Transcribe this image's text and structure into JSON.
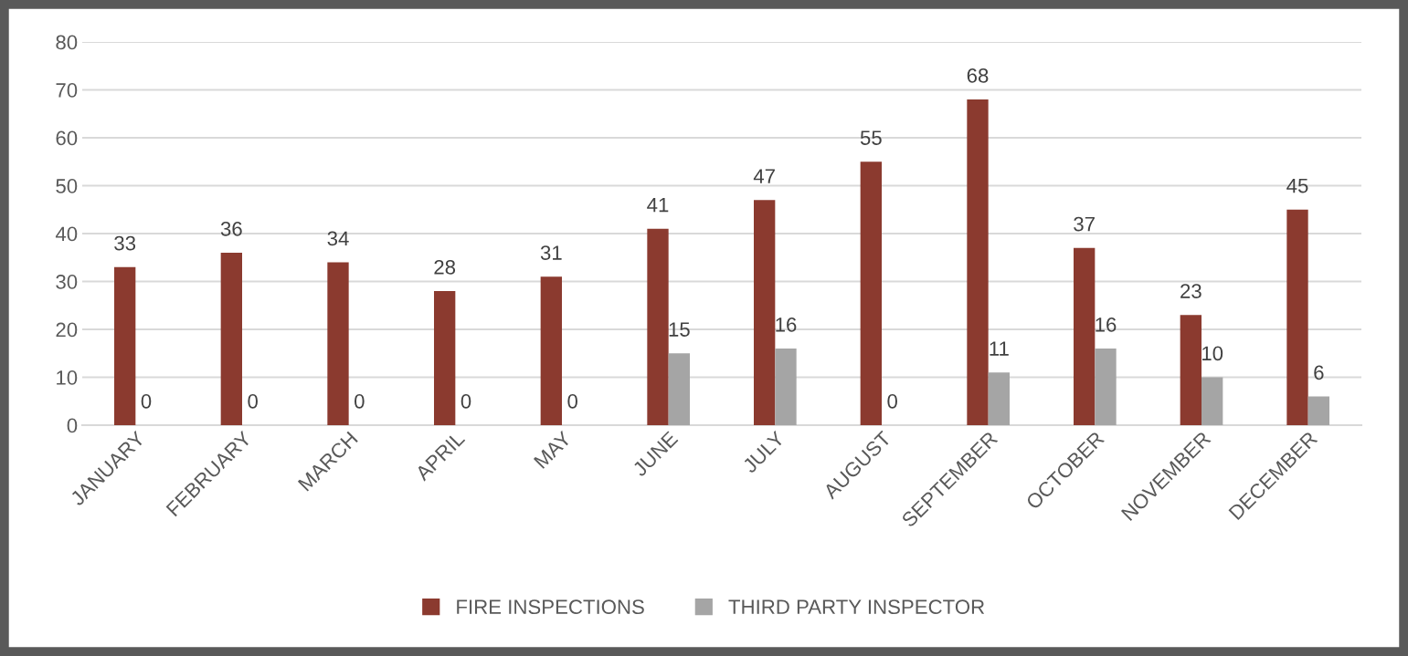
{
  "chart_data": {
    "type": "bar",
    "categories": [
      "JANUARY",
      "FEBRUARY",
      "MARCH",
      "APRIL",
      "MAY",
      "JUNE",
      "JULY",
      "AUGUST",
      "SEPTEMBER",
      "OCTOBER",
      "NOVEMBER",
      "DECEMBER"
    ],
    "series": [
      {
        "name": "FIRE INSPECTIONS",
        "color": "#8b3a2f",
        "values": [
          33,
          36,
          34,
          28,
          31,
          41,
          47,
          55,
          68,
          37,
          23,
          45
        ]
      },
      {
        "name": "THIRD PARTY INSPECTOR",
        "color": "#a5a5a5",
        "values": [
          0,
          0,
          0,
          0,
          0,
          15,
          16,
          0,
          11,
          16,
          10,
          6
        ]
      }
    ],
    "ylim": [
      0,
      80
    ],
    "yticks": [
      0,
      10,
      20,
      30,
      40,
      50,
      60,
      70,
      80
    ],
    "grid": "y",
    "legend": "bottom",
    "data_labels": true
  }
}
